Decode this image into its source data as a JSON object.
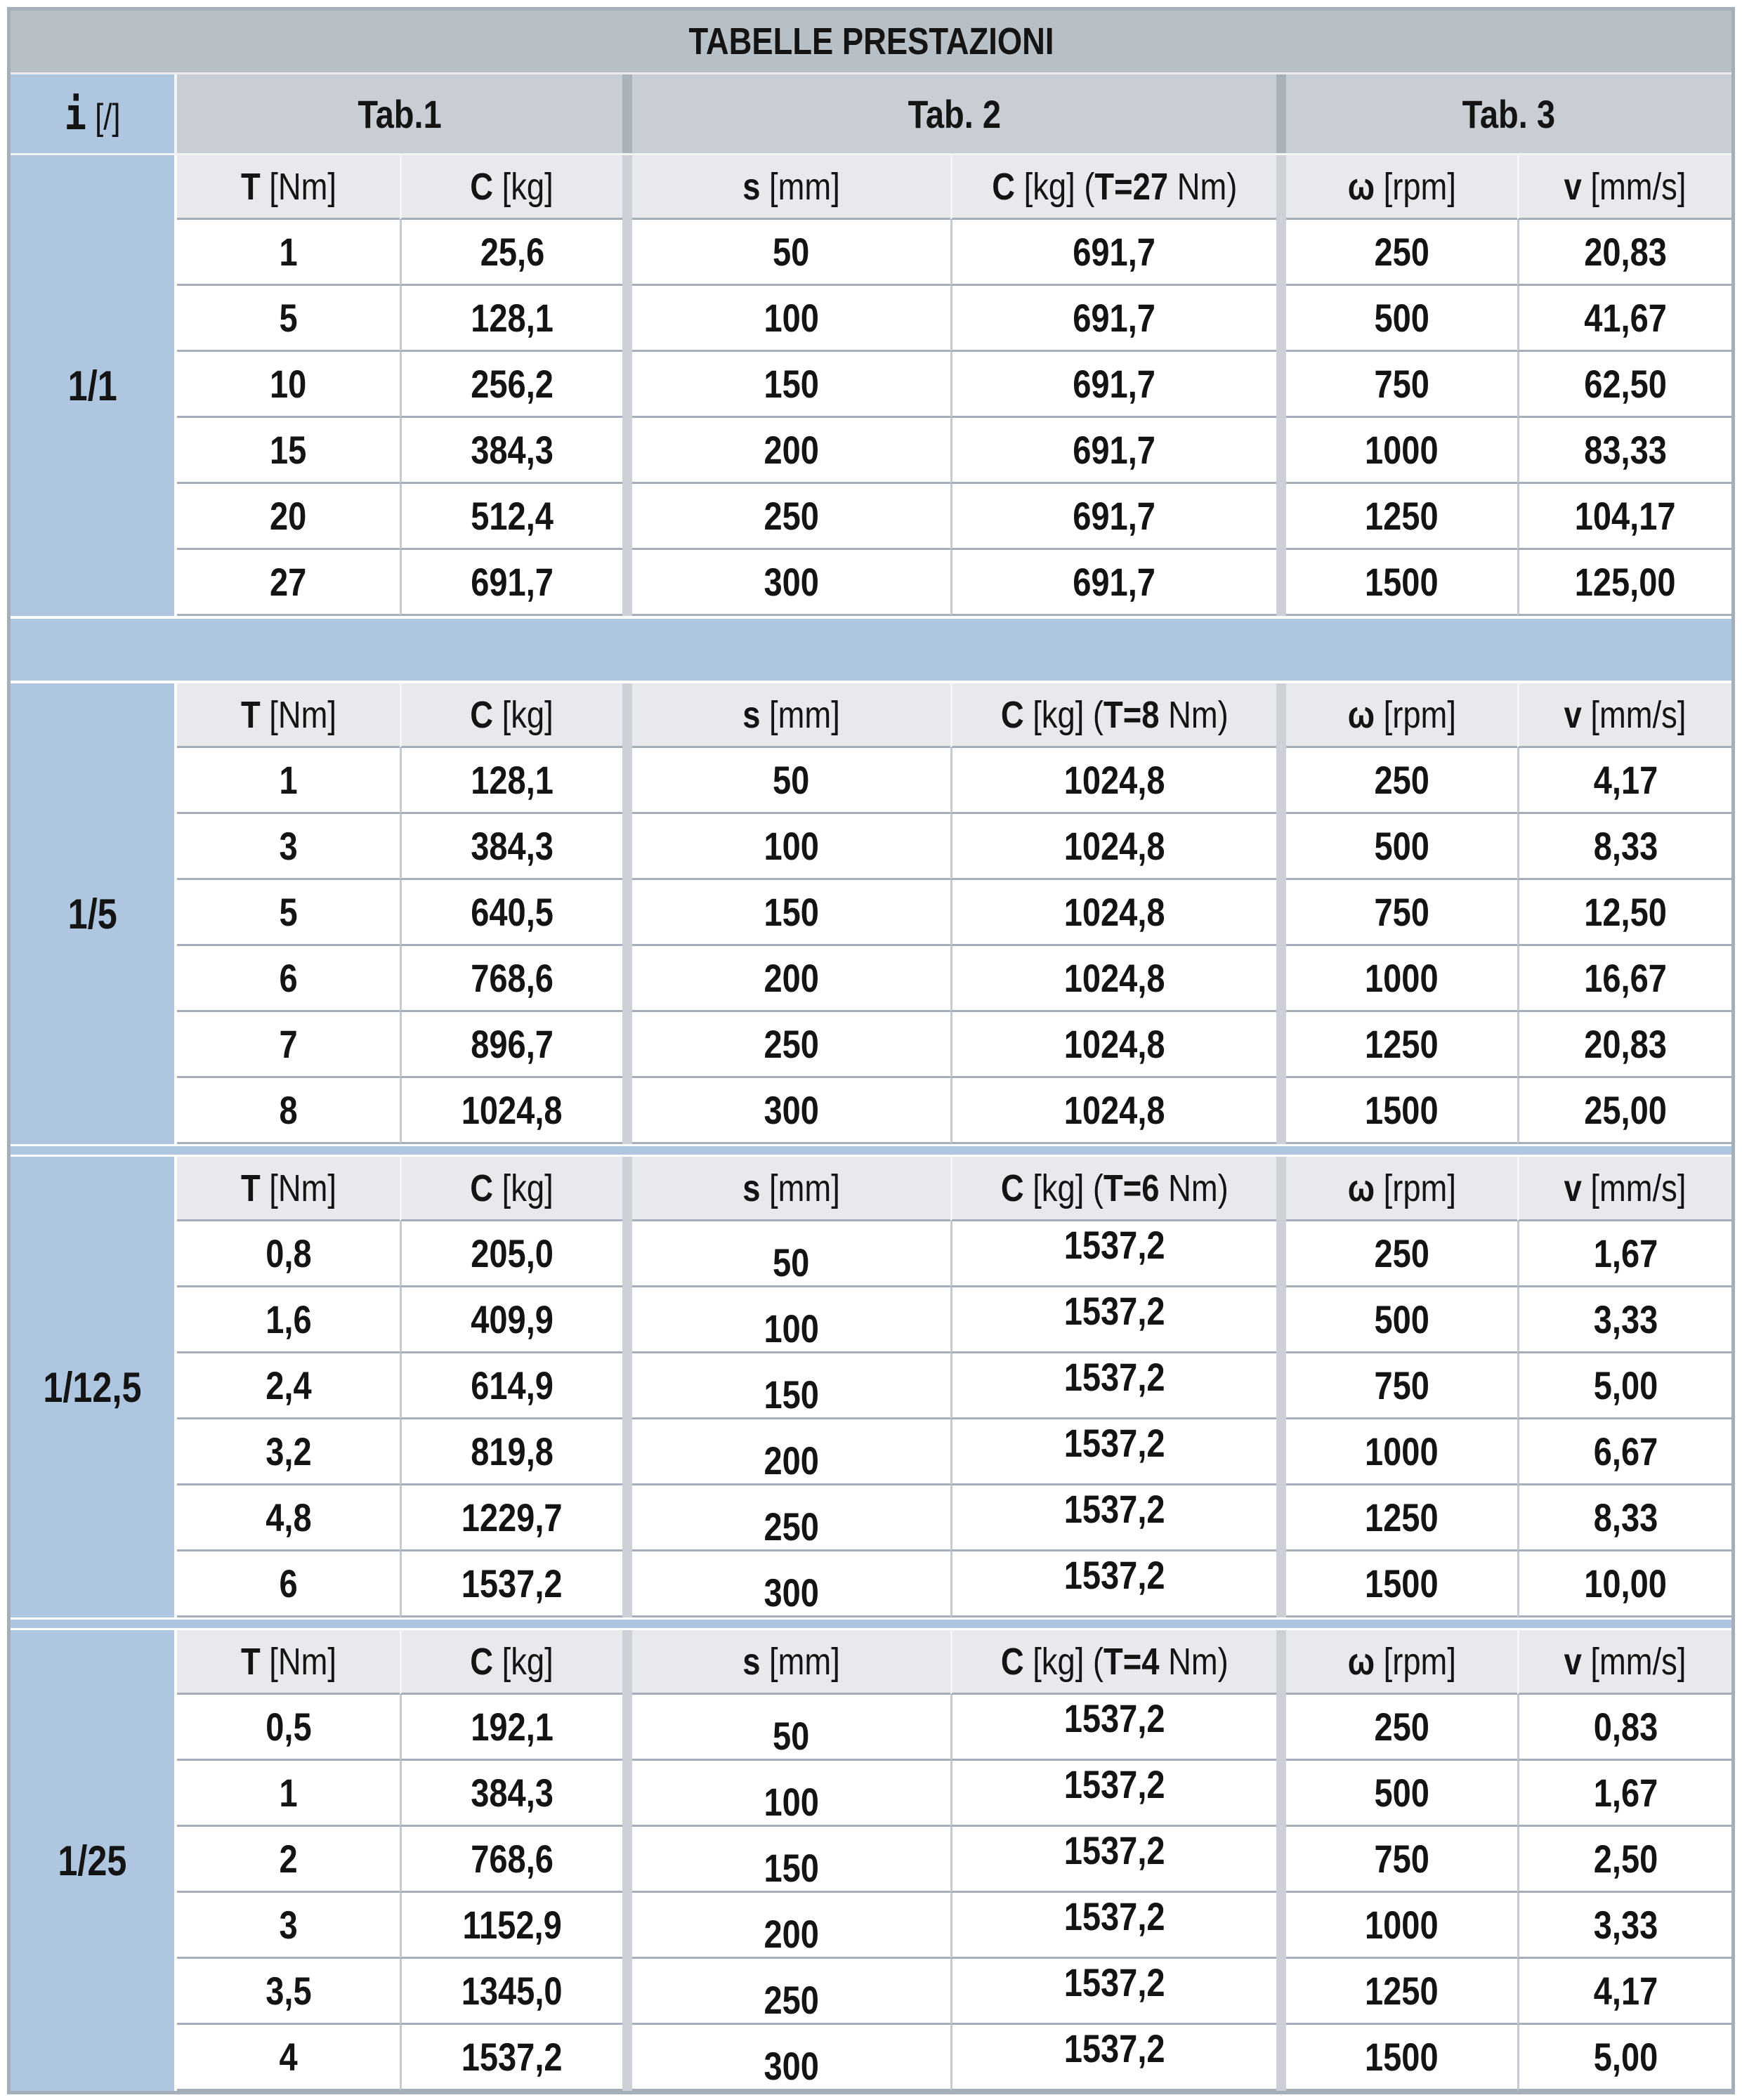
{
  "title": "TABELLE PRESTAZIONI",
  "i_col": {
    "symbol": "i",
    "unit": " [/]"
  },
  "tabs": [
    "Tab.1",
    "Tab. 2",
    "Tab. 3"
  ],
  "colors": {
    "steel_blue": "#aec6df",
    "title_bar": "#b7bfc7",
    "tab_bar": "#c9ced4",
    "column_header_bg": "#e8e9ec",
    "row_line": "#a5aeb8",
    "column_line": "#c5cbd1",
    "group_separator": "#cdd1d7",
    "outer_border": "#a4afba",
    "cell_bg": "#ffffff",
    "text": "#141414"
  },
  "sections": [
    {
      "ratio": "1/1",
      "h": {
        "t": [
          "T",
          " [Nm]"
        ],
        "c": [
          "C",
          " [kg]"
        ],
        "s": [
          "s",
          " [mm]"
        ],
        "ct": [
          "C",
          " [kg] (",
          "T=27",
          " Nm)"
        ],
        "w": [
          "ω",
          " [rpm]"
        ],
        "v": [
          "v",
          " [mm/s]"
        ]
      },
      "rows": [
        [
          "1",
          "25,6",
          "50",
          "691,7",
          "250",
          "20,83"
        ],
        [
          "5",
          "128,1",
          "100",
          "691,7",
          "500",
          "41,67"
        ],
        [
          "10",
          "256,2",
          "150",
          "691,7",
          "750",
          "62,50"
        ],
        [
          "15",
          "384,3",
          "200",
          "691,7",
          "1000",
          "83,33"
        ],
        [
          "20",
          "512,4",
          "250",
          "691,7",
          "1250",
          "104,17"
        ],
        [
          "27",
          "691,7",
          "300",
          "691,7",
          "1500",
          "125,00"
        ]
      ]
    },
    {
      "ratio": "1/5",
      "h": {
        "t": [
          "T",
          " [Nm]"
        ],
        "c": [
          "C",
          " [kg]"
        ],
        "s": [
          "s",
          " [mm]"
        ],
        "ct": [
          "C",
          " [kg] (",
          "T=8",
          " Nm)"
        ],
        "w": [
          "ω",
          " [rpm]"
        ],
        "v": [
          "v",
          " [mm/s]"
        ]
      },
      "rows": [
        [
          "1",
          "128,1",
          "50",
          "1024,8",
          "250",
          "4,17"
        ],
        [
          "3",
          "384,3",
          "100",
          "1024,8",
          "500",
          "8,33"
        ],
        [
          "5",
          "640,5",
          "150",
          "1024,8",
          "750",
          "12,50"
        ],
        [
          "6",
          "768,6",
          "200",
          "1024,8",
          "1000",
          "16,67"
        ],
        [
          "7",
          "896,7",
          "250",
          "1024,8",
          "1250",
          "20,83"
        ],
        [
          "8",
          "1024,8",
          "300",
          "1024,8",
          "1500",
          "25,00"
        ]
      ]
    },
    {
      "ratio": "1/12,5",
      "h": {
        "t": [
          "T",
          " [Nm]"
        ],
        "c": [
          "C",
          " [kg]"
        ],
        "s": [
          "s",
          " [mm]"
        ],
        "ct": [
          "C",
          " [kg] (",
          "T=6",
          " Nm)"
        ],
        "w": [
          "ω",
          " [rpm]"
        ],
        "v": [
          "v",
          " [mm/s]"
        ]
      },
      "rows": [
        [
          "0,8",
          "205,0",
          "50",
          "1537,2",
          "250",
          "1,67"
        ],
        [
          "1,6",
          "409,9",
          "100",
          "1537,2",
          "500",
          "3,33"
        ],
        [
          "2,4",
          "614,9",
          "150",
          "1537,2",
          "750",
          "5,00"
        ],
        [
          "3,2",
          "819,8",
          "200",
          "1537,2",
          "1000",
          "6,67"
        ],
        [
          "4,8",
          "1229,7",
          "250",
          "1537,2",
          "1250",
          "8,33"
        ],
        [
          "6",
          "1537,2",
          "300",
          "1537,2",
          "1500",
          "10,00"
        ]
      ]
    },
    {
      "ratio": "1/25",
      "h": {
        "t": [
          "T",
          " [Nm]"
        ],
        "c": [
          "C",
          " [kg]"
        ],
        "s": [
          "s",
          " [mm]"
        ],
        "ct": [
          "C",
          " [kg] (",
          "T=4",
          " Nm)"
        ],
        "w": [
          "ω",
          " [rpm]"
        ],
        "v": [
          "v",
          " [mm/s]"
        ]
      },
      "rows": [
        [
          "0,5",
          "192,1",
          "50",
          "1537,2",
          "250",
          "0,83"
        ],
        [
          "1",
          "384,3",
          "100",
          "1537,2",
          "500",
          "1,67"
        ],
        [
          "2",
          "768,6",
          "150",
          "1537,2",
          "750",
          "2,50"
        ],
        [
          "3",
          "1152,9",
          "200",
          "1537,2",
          "1000",
          "3,33"
        ],
        [
          "3,5",
          "1345,0",
          "250",
          "1537,2",
          "1250",
          "4,17"
        ],
        [
          "4",
          "1537,2",
          "300",
          "1537,2",
          "1500",
          "5,00"
        ]
      ]
    }
  ]
}
